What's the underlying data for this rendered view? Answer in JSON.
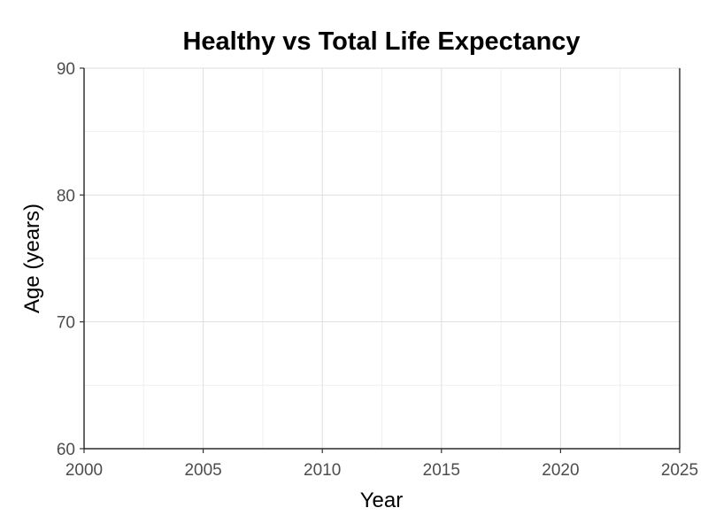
{
  "chart_data": {
    "type": "line",
    "title": "Healthy vs Total Life Expectancy",
    "xlabel": "Year",
    "ylabel": "Age (years)",
    "xlim": [
      2000,
      2025
    ],
    "ylim": [
      60,
      90
    ],
    "x_ticks": [
      2000,
      2005,
      2010,
      2015,
      2020,
      2025
    ],
    "y_ticks": [
      60,
      70,
      80,
      90
    ],
    "x_minor_ticks": [
      2002.5,
      2007.5,
      2012.5,
      2017.5,
      2022.5
    ],
    "y_minor_ticks": [
      65,
      75,
      85
    ],
    "grid": true,
    "series": []
  }
}
